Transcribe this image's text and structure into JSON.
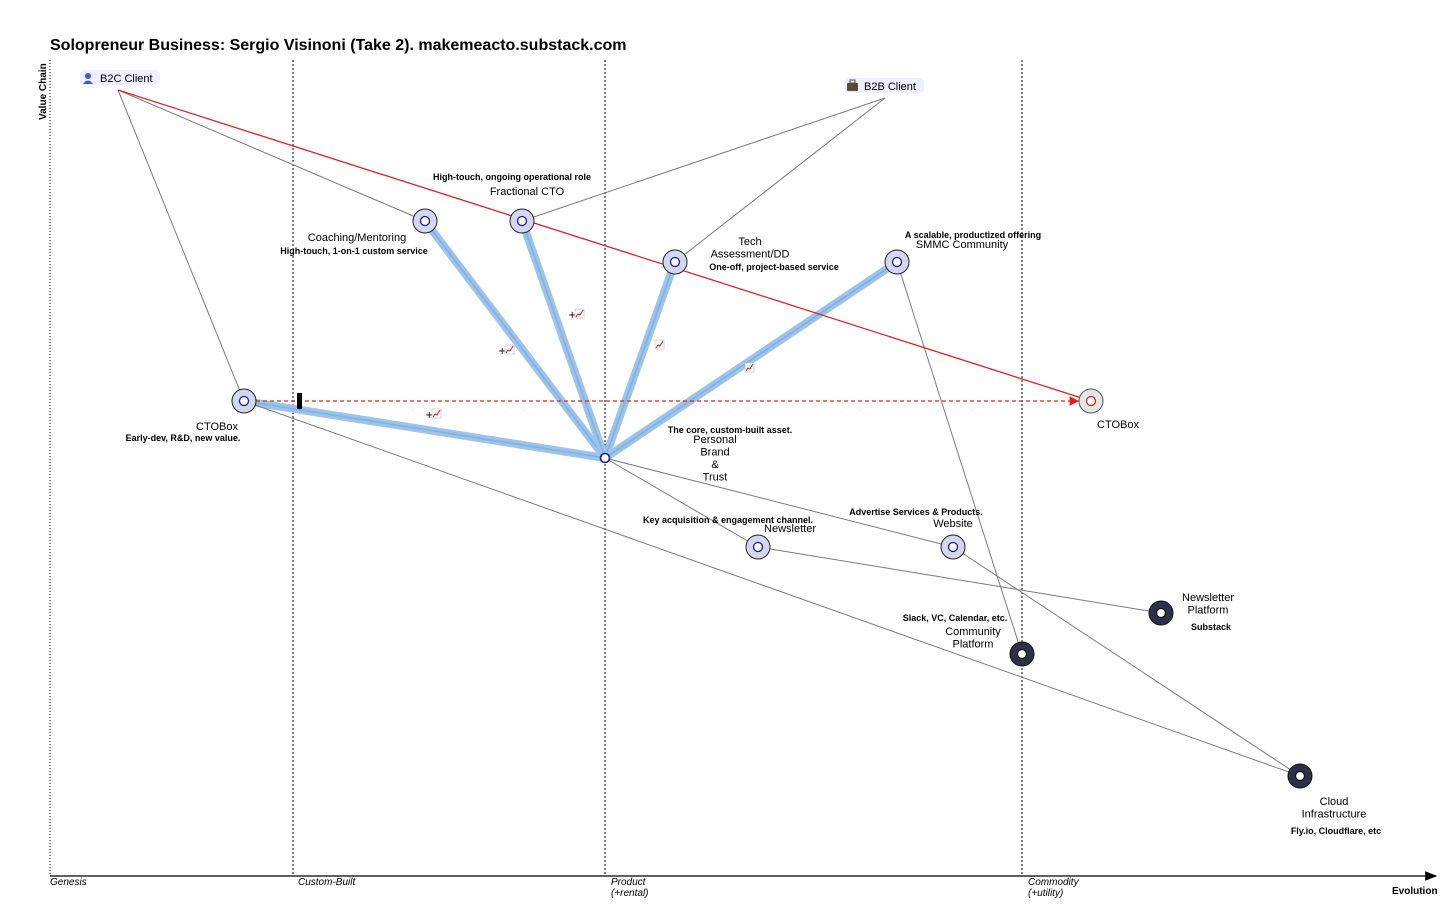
{
  "title": "Solopreneur Business: Sergio Visinoni (Take 2). makemeacto.substack.com",
  "axes": {
    "y_label": "Value Chain",
    "x_label": "Evolution",
    "stages": [
      "Genesis",
      "Custom-Built",
      "Product",
      "(+rental)",
      "Commodity",
      "(+utility)"
    ]
  },
  "anchors": [
    {
      "id": "b2c",
      "label": "B2C Client",
      "icon": "person-icon"
    },
    {
      "id": "b2b",
      "label": "B2B Client",
      "icon": "briefcase-icon"
    }
  ],
  "components": [
    {
      "id": "fractional",
      "name_lines": [
        "Fractional CTO"
      ],
      "note": "High-touch, ongoing operational role",
      "style": "light"
    },
    {
      "id": "coaching",
      "name_lines": [
        "Coaching/Mentoring"
      ],
      "note": "High-touch, 1-on-1 custom service",
      "style": "light"
    },
    {
      "id": "tech",
      "name_lines": [
        "Tech",
        "Assessment/DD"
      ],
      "note": "One-off, project-based service",
      "style": "light"
    },
    {
      "id": "smmc",
      "name_lines": [
        "SMMC Community"
      ],
      "note": "A scalable, productized offering",
      "style": "light"
    },
    {
      "id": "ctobox",
      "name_lines": [
        "CTOBox"
      ],
      "note": "Early-dev, R&D, new value.",
      "style": "light"
    },
    {
      "id": "ctobox_future",
      "name_lines": [
        "CTOBox"
      ],
      "note": "",
      "style": "future"
    },
    {
      "id": "brand",
      "name_lines": [
        "Personal",
        "Brand",
        "&",
        "Trust"
      ],
      "note": "The core, custom-built asset.",
      "style": "plain"
    },
    {
      "id": "newsletter",
      "name_lines": [
        "Newsletter"
      ],
      "note": "Key acquisition & engagement channel.",
      "style": "light"
    },
    {
      "id": "website",
      "name_lines": [
        "Website"
      ],
      "note": "Advertise Services & Products.",
      "style": "light"
    },
    {
      "id": "nl_platform",
      "name_lines": [
        "Newsletter",
        "Platform"
      ],
      "note": "Substack",
      "style": "dark"
    },
    {
      "id": "comm_platform",
      "name_lines": [
        "Community",
        "Platform"
      ],
      "note": "Slack, VC, Calendar, etc.",
      "style": "dark"
    },
    {
      "id": "cloud",
      "name_lines": [
        "Cloud",
        "Infrastructure"
      ],
      "note": "Fly.io, Cloudflare, etc",
      "style": "dark"
    }
  ],
  "links": [
    [
      "b2c",
      "coaching"
    ],
    [
      "b2c",
      "ctobox"
    ],
    [
      "b2b",
      "fractional"
    ],
    [
      "b2b",
      "tech"
    ],
    [
      "brand",
      "newsletter"
    ],
    [
      "brand",
      "website"
    ],
    [
      "newsletter",
      "nl_platform"
    ],
    [
      "website",
      "cloud"
    ],
    [
      "smmc",
      "comm_platform"
    ],
    [
      "ctobox",
      "cloud"
    ]
  ],
  "pipelines": [
    {
      "from": "coaching",
      "to": "brand",
      "symbol": "+"
    },
    {
      "from": "fractional",
      "to": "brand",
      "symbol": "+"
    },
    {
      "from": "tech",
      "to": "brand",
      "symbol": ""
    },
    {
      "from": "smmc",
      "to": "brand",
      "symbol": ""
    },
    {
      "from": "ctobox",
      "to": "brand",
      "symbol": "+"
    }
  ],
  "red_link": {
    "from": "b2c",
    "to": "ctobox_future"
  },
  "evolve_link": {
    "from": "ctobox",
    "to": "ctobox_future"
  },
  "colors": {
    "pipeline": "#9cc3ea",
    "red_line": "#e02020",
    "node_light_fill": "#d4d6ee",
    "node_dark_fill": "#2e3048",
    "link": "#7a7a7a"
  }
}
